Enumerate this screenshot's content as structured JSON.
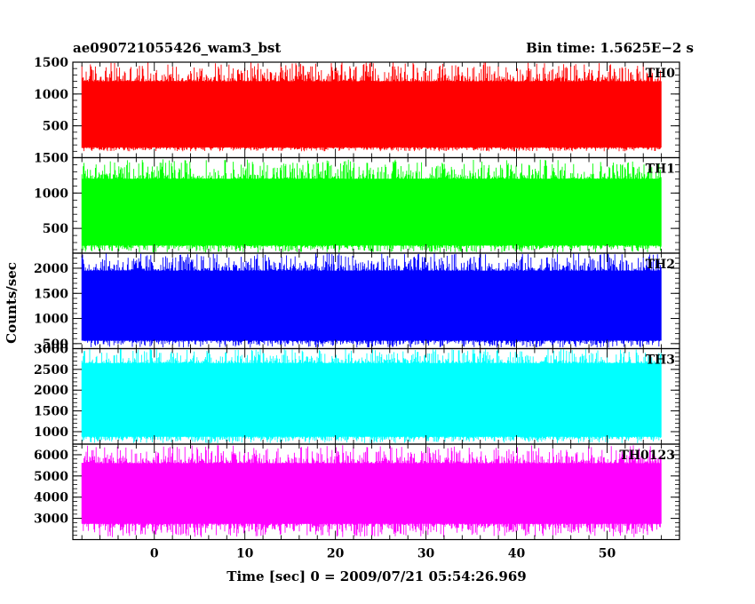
{
  "header": {
    "left": "ae090721055426_wam3_bst",
    "right": "Bin time: 1.5625E−2 s"
  },
  "chart_data": {
    "type": "line",
    "xlabel": "Time [sec] 0 = 2009/07/21 05:54:26.969",
    "ylabel": "Counts/sec",
    "xlim": [
      -9,
      58
    ],
    "data_x_range": [
      -8,
      56
    ],
    "xticks": [
      0,
      10,
      20,
      30,
      40,
      50
    ],
    "panels": [
      {
        "name": "TH0",
        "color": "#ff0000",
        "ylim": [
          0,
          1500
        ],
        "yticks": [
          500,
          1000,
          1500
        ],
        "band": [
          160,
          1200
        ],
        "mean": 650,
        "spike_max": 1500,
        "spike_min": 100
      },
      {
        "name": "TH1",
        "color": "#00ff00",
        "ylim": [
          150,
          1500
        ],
        "yticks": [
          500,
          1000,
          1500
        ],
        "band": [
          260,
          1200
        ],
        "mean": 720,
        "spike_max": 1480,
        "spike_min": 160
      },
      {
        "name": "TH2",
        "color": "#0000ff",
        "ylim": [
          400,
          2300
        ],
        "yticks": [
          500,
          1000,
          1500,
          2000
        ],
        "band": [
          560,
          1950
        ],
        "mean": 1150,
        "spike_max": 2300,
        "spike_min": 420
      },
      {
        "name": "TH3",
        "color": "#00ffff",
        "ylim": [
          700,
          3000
        ],
        "yticks": [
          1000,
          1500,
          2000,
          2500,
          3000
        ],
        "band": [
          880,
          2650
        ],
        "mean": 1700,
        "spike_max": 3000,
        "spike_min": 720
      },
      {
        "name": "TH0123",
        "color": "#ff00ff",
        "ylim": [
          2000,
          6500
        ],
        "yticks": [
          3000,
          4000,
          5000,
          6000
        ],
        "band": [
          2750,
          5600
        ],
        "mean": 4100,
        "spike_max": 6450,
        "spike_min": 2100
      }
    ]
  }
}
